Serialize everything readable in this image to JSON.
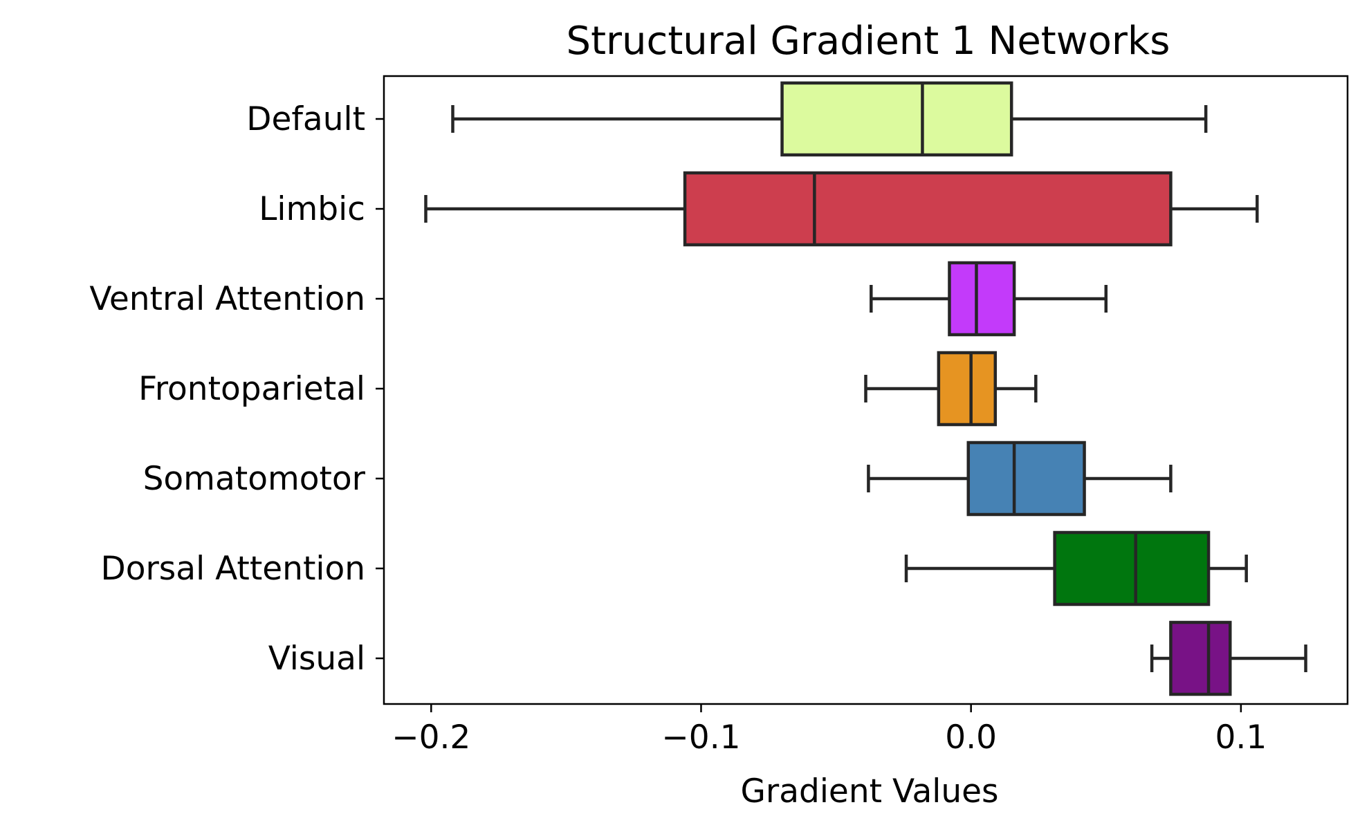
{
  "chart_data": {
    "type": "boxplot",
    "orientation": "horizontal",
    "title": "Structural Gradient 1 Networks",
    "xlabel": "Gradient Values",
    "ylabel": "",
    "xlim": [
      -0.2175,
      0.1395
    ],
    "xticks": [
      -0.2,
      -0.1,
      0.0,
      0.1
    ],
    "xtick_labels": [
      "−0.2",
      "−0.1",
      "0.0",
      "0.1"
    ],
    "grid": false,
    "legend": "none",
    "categories": [
      "Default",
      "Limbic",
      "Ventral Attention",
      "Frontoparietal",
      "Somatomotor",
      "Dorsal Attention",
      "Visual"
    ],
    "series": [
      {
        "category": "Default",
        "whisker_low": -0.192,
        "q1": -0.07,
        "median": -0.018,
        "q3": 0.015,
        "whisker_high": 0.087,
        "color": "#dcfa9e"
      },
      {
        "category": "Limbic",
        "whisker_low": -0.202,
        "q1": -0.106,
        "median": -0.058,
        "q3": 0.074,
        "whisker_high": 0.106,
        "color": "#cd3e4e"
      },
      {
        "category": "Ventral Attention",
        "whisker_low": -0.037,
        "q1": -0.008,
        "median": 0.002,
        "q3": 0.016,
        "whisker_high": 0.05,
        "color": "#c33afa"
      },
      {
        "category": "Frontoparietal",
        "whisker_low": -0.039,
        "q1": -0.012,
        "median": 0.0,
        "q3": 0.009,
        "whisker_high": 0.024,
        "color": "#e69422"
      },
      {
        "category": "Somatomotor",
        "whisker_low": -0.038,
        "q1": -0.001,
        "median": 0.016,
        "q3": 0.042,
        "whisker_high": 0.074,
        "color": "#4682b4"
      },
      {
        "category": "Dorsal Attention",
        "whisker_low": -0.024,
        "q1": 0.031,
        "median": 0.061,
        "q3": 0.088,
        "whisker_high": 0.102,
        "color": "#00760e"
      },
      {
        "category": "Visual",
        "whisker_low": 0.067,
        "q1": 0.074,
        "median": 0.088,
        "q3": 0.096,
        "whisker_high": 0.124,
        "color": "#781286"
      }
    ],
    "edge_color": "#262626"
  }
}
